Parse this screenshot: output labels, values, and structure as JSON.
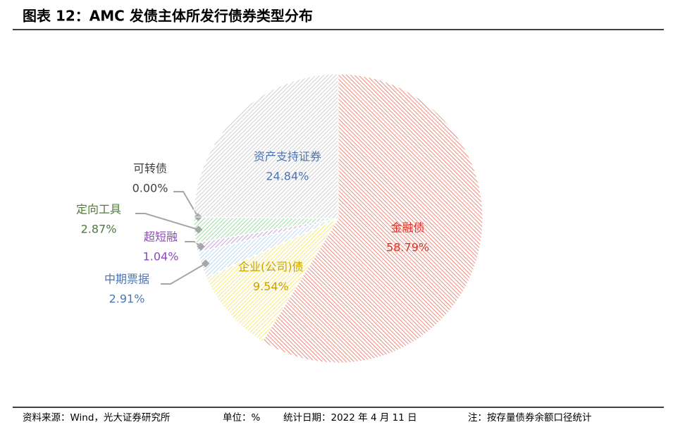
{
  "chart_data": {
    "type": "pie",
    "title": "图表 12：AMC 发债主体所发行债券类型分布",
    "categories": [
      "金融债",
      "企业(公司)债",
      "中期票据",
      "超短融",
      "定向工具",
      "可转债",
      "资产支持证券"
    ],
    "values": [
      58.79,
      9.54,
      2.91,
      1.04,
      2.87,
      0.0,
      24.84
    ],
    "value_labels": [
      "58.79%",
      "9.54%",
      "2.91%",
      "1.04%",
      "2.87%",
      "0.00%",
      "24.84%"
    ],
    "colors": [
      "#e8705c",
      "#f2e25a",
      "#a9cfee",
      "#b38ad0",
      "#82d48e",
      "#9aa0a6",
      "#c4c4c4"
    ],
    "label_colors": [
      "#d9342b",
      "#c9a100",
      "#4d75b3",
      "#8f47be",
      "#4f7a3a",
      "#404040",
      "#4d75b3"
    ]
  },
  "footer": {
    "source": "资料来源：Wind，光大证券研究所",
    "unit": "单位：%",
    "date": "统计日期：2022 年 4 月 11 日",
    "note": "注：按存量债券余额口径统计"
  }
}
